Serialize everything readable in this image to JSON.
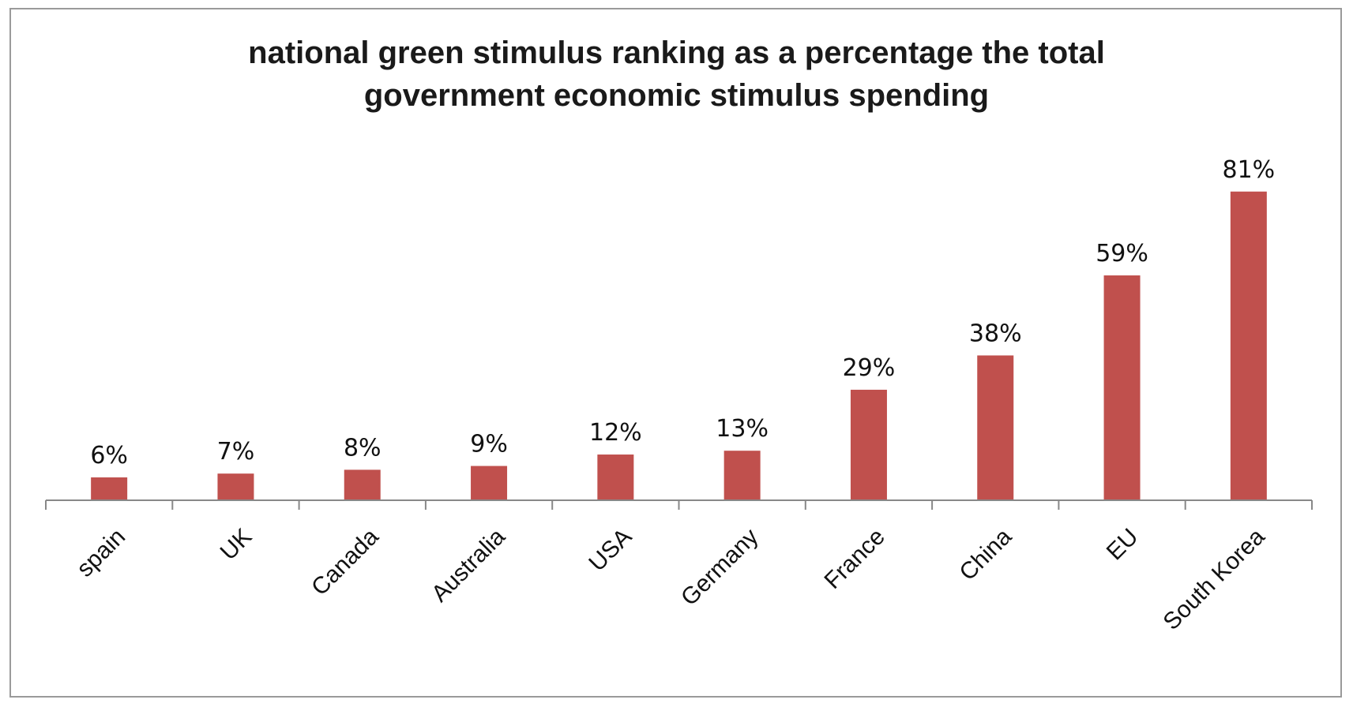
{
  "chart_data": {
    "type": "bar",
    "title_lines": [
      "national green stimulus ranking as a percentage the total",
      "government economic  stimulus spending"
    ],
    "categories": [
      "spain",
      "UK",
      "Canada",
      "Australia",
      "USA",
      "Germany",
      "France",
      "China",
      "EU",
      "South Korea"
    ],
    "values": [
      6,
      7,
      8,
      9,
      12,
      13,
      29,
      38,
      59,
      81
    ],
    "data_labels": [
      "6%",
      "7%",
      "8%",
      "9%",
      "12%",
      "13%",
      "29%",
      "38%",
      "59%",
      "81%"
    ],
    "xlabel": "",
    "ylabel": "",
    "ylim": [
      0,
      90
    ],
    "grid": false,
    "legend": "none",
    "bar_color": "#c0504d"
  }
}
